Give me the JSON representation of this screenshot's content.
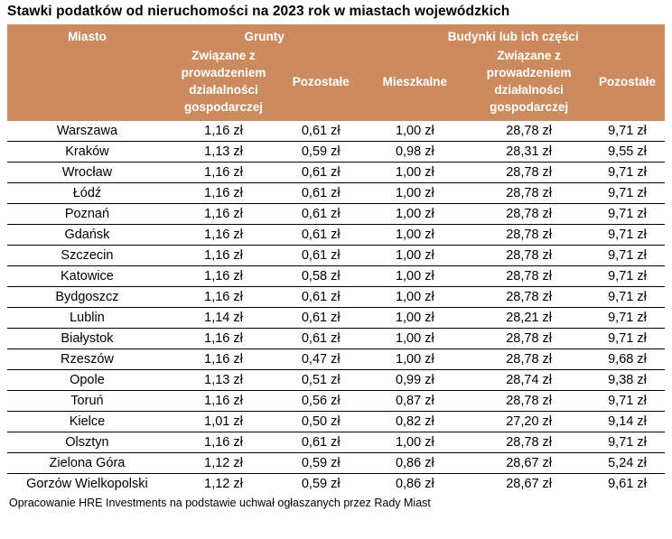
{
  "colors": {
    "header_bg": "#CB8B5F",
    "header_text": "#FFFFFF",
    "body_text": "#000000",
    "row_divider": "#000000",
    "background": "#FFFFFF"
  },
  "chart_data": {
    "type": "table",
    "title": "Stawki podatków od nieruchomości na 2023 rok w miastach wojewódzkich",
    "groups": [
      "Grunty",
      "Budynki lub ich części"
    ],
    "columns": [
      "Miasto",
      "Związane z prowadzeniem działalności gospodarczej",
      "Pozostałe",
      "Mieszkalne",
      "Związane z prowadzeniem działalności gospodarczej",
      "Pozostałe"
    ],
    "unit": "zł",
    "rows": [
      {
        "city": "Warszawa",
        "values": [
          "1,16 zł",
          "0,61 zł",
          "1,00 zł",
          "28,78 zł",
          "9,71 zł"
        ]
      },
      {
        "city": "Kraków",
        "values": [
          "1,13 zł",
          "0,59 zł",
          "0,98 zł",
          "28,31 zł",
          "9,55 zł"
        ]
      },
      {
        "city": "Wrocław",
        "values": [
          "1,16 zł",
          "0,61 zł",
          "1,00 zł",
          "28,78 zł",
          "9,71 zł"
        ]
      },
      {
        "city": "Łódź",
        "values": [
          "1,16 zł",
          "0,61 zł",
          "1,00 zł",
          "28,78 zł",
          "9,71 zł"
        ]
      },
      {
        "city": "Poznań",
        "values": [
          "1,16 zł",
          "0,61 zł",
          "1,00 zł",
          "28,78 zł",
          "9,71 zł"
        ]
      },
      {
        "city": "Gdańsk",
        "values": [
          "1,16 zł",
          "0,61 zł",
          "1,00 zł",
          "28,78 zł",
          "9,71 zł"
        ]
      },
      {
        "city": "Szczecin",
        "values": [
          "1,16 zł",
          "0,61 zł",
          "1,00 zł",
          "28,78 zł",
          "9,71 zł"
        ]
      },
      {
        "city": "Katowice",
        "values": [
          "1,16 zł",
          "0,58 zł",
          "1,00 zł",
          "28,78 zł",
          "9,71 zł"
        ]
      },
      {
        "city": "Bydgoszcz",
        "values": [
          "1,16 zł",
          "0,61 zł",
          "1,00 zł",
          "28,78 zł",
          "9,71 zł"
        ]
      },
      {
        "city": "Lublin",
        "values": [
          "1,14 zł",
          "0,61 zł",
          "1,00 zł",
          "28,21 zł",
          "9,71 zł"
        ]
      },
      {
        "city": "Białystok",
        "values": [
          "1,16 zł",
          "0,61 zł",
          "1,00 zł",
          "28,78 zł",
          "9,71 zł"
        ]
      },
      {
        "city": "Rzeszów",
        "values": [
          "1,16 zł",
          "0,47 zł",
          "1,00 zł",
          "28,78 zł",
          "9,68 zł"
        ]
      },
      {
        "city": "Opole",
        "values": [
          "1,13 zł",
          "0,51 zł",
          "0,99 zł",
          "28,74 zł",
          "9,38 zł"
        ]
      },
      {
        "city": "Toruń",
        "values": [
          "1,16 zł",
          "0,56 zł",
          "0,87 zł",
          "28,78 zł",
          "9,71 zł"
        ]
      },
      {
        "city": "Kielce",
        "values": [
          "1,01 zł",
          "0,50 zł",
          "0,82 zł",
          "27,20 zł",
          "9,14 zł"
        ]
      },
      {
        "city": "Olsztyn",
        "values": [
          "1,16 zł",
          "0,61 zł",
          "1,00 zł",
          "28,78 zł",
          "9,71 zł"
        ]
      },
      {
        "city": "Zielona Góra",
        "values": [
          "1,12 zł",
          "0,59 zł",
          "0,86 zł",
          "28,67 zł",
          "5,24 zł"
        ]
      },
      {
        "city": "Gorzów Wielkopolski",
        "values": [
          "1,12 zł",
          "0,59 zł",
          "0,86 zł",
          "28,67 zł",
          "9,61 zł"
        ]
      }
    ],
    "source": "Opracowanie HRE Investments na podstawie uchwał ogłaszanych przez Rady Miast"
  }
}
